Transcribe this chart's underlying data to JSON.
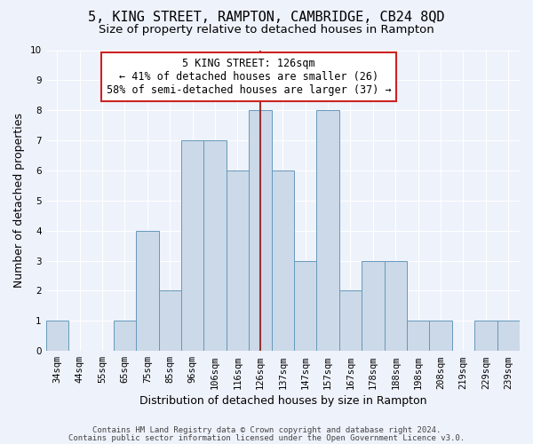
{
  "title": "5, KING STREET, RAMPTON, CAMBRIDGE, CB24 8QD",
  "subtitle": "Size of property relative to detached houses in Rampton",
  "xlabel": "Distribution of detached houses by size in Rampton",
  "ylabel": "Number of detached properties",
  "bins": [
    "34sqm",
    "44sqm",
    "55sqm",
    "65sqm",
    "75sqm",
    "85sqm",
    "96sqm",
    "106sqm",
    "116sqm",
    "126sqm",
    "137sqm",
    "147sqm",
    "157sqm",
    "167sqm",
    "178sqm",
    "188sqm",
    "198sqm",
    "208sqm",
    "219sqm",
    "229sqm",
    "239sqm"
  ],
  "values": [
    1,
    0,
    0,
    1,
    4,
    2,
    7,
    7,
    6,
    8,
    6,
    3,
    8,
    2,
    3,
    3,
    1,
    1,
    0,
    1,
    1
  ],
  "bar_color": "#ccd9e8",
  "bar_edge_color": "#6699bb",
  "highlight_line_index": 9,
  "highlight_line_color": "#993333",
  "annotation_text": "5 KING STREET: 126sqm\n← 41% of detached houses are smaller (26)\n58% of semi-detached houses are larger (37) →",
  "annotation_box_facecolor": "#ffffff",
  "annotation_box_edgecolor": "#cc2222",
  "ylim": [
    0,
    10
  ],
  "yticks": [
    0,
    1,
    2,
    3,
    4,
    5,
    6,
    7,
    8,
    9,
    10
  ],
  "background_color": "#eef2fb",
  "grid_color": "#ffffff",
  "footer1": "Contains HM Land Registry data © Crown copyright and database right 2024.",
  "footer2": "Contains public sector information licensed under the Open Government Licence v3.0.",
  "title_fontsize": 11,
  "subtitle_fontsize": 9.5,
  "xlabel_fontsize": 9,
  "ylabel_fontsize": 9,
  "tick_fontsize": 7.5,
  "annotation_fontsize": 8.5,
  "footer_fontsize": 6.5
}
